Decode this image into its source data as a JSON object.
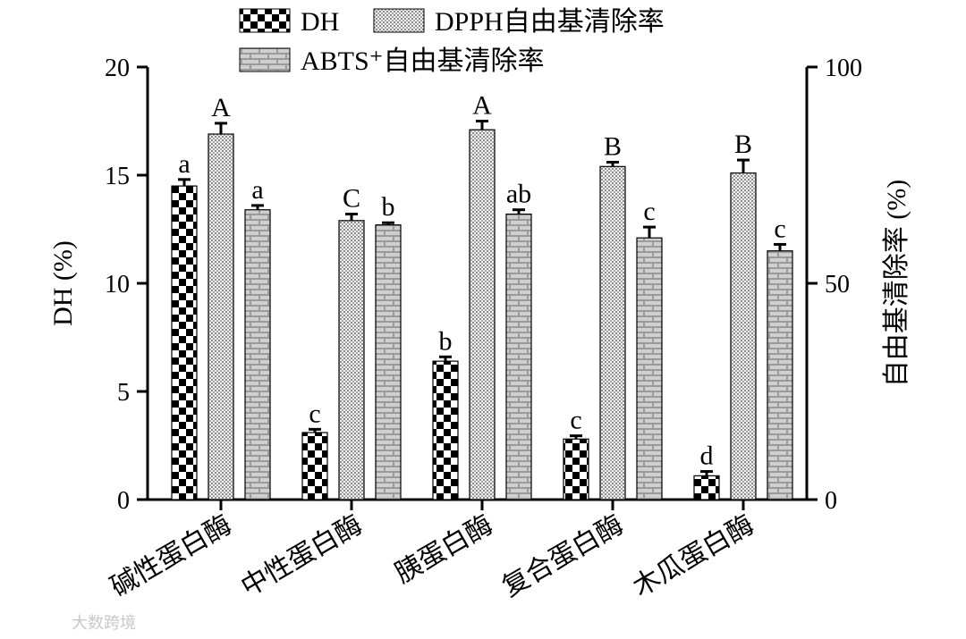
{
  "chart_data": {
    "type": "bar",
    "categories": [
      "碱性蛋白酶",
      "中性蛋白酶",
      "胰蛋白酶",
      "复合蛋白酶",
      "木瓜蛋白酶"
    ],
    "series": [
      {
        "name": "DH",
        "axis": "left",
        "values": [
          14.5,
          3.1,
          6.4,
          2.8,
          1.1
        ],
        "errors": [
          0.3,
          0.15,
          0.2,
          0.15,
          0.2
        ],
        "labels": [
          "a",
          "c",
          "b",
          "c",
          "d"
        ],
        "pattern": "checker"
      },
      {
        "name": "DPPH自由基清除率",
        "axis": "right",
        "values": [
          84.5,
          64.5,
          85.5,
          77.0,
          75.5
        ],
        "errors": [
          2.5,
          1.5,
          2.0,
          1.0,
          3.0
        ],
        "labels": [
          "A",
          "C",
          "A",
          "B",
          "B"
        ],
        "pattern": "dots"
      },
      {
        "name": "ABTS⁺自由基清除率",
        "axis": "right",
        "values": [
          67.0,
          63.5,
          66.0,
          60.5,
          57.5
        ],
        "errors": [
          1.0,
          0.5,
          1.0,
          2.5,
          1.5
        ],
        "labels": [
          "a",
          "b",
          "ab",
          "c",
          "c"
        ],
        "pattern": "brick"
      }
    ],
    "y_left": {
      "label": "DH (%)",
      "lim": [
        0,
        20
      ],
      "ticks": [
        "0",
        "5",
        "10",
        "15",
        "20"
      ]
    },
    "y_right": {
      "label": "自由基清除率 (%)",
      "lim": [
        0,
        100
      ],
      "ticks": [
        "0",
        "50",
        "100"
      ]
    },
    "legend_position": "top",
    "grid": false
  },
  "watermark": "大数跨境"
}
